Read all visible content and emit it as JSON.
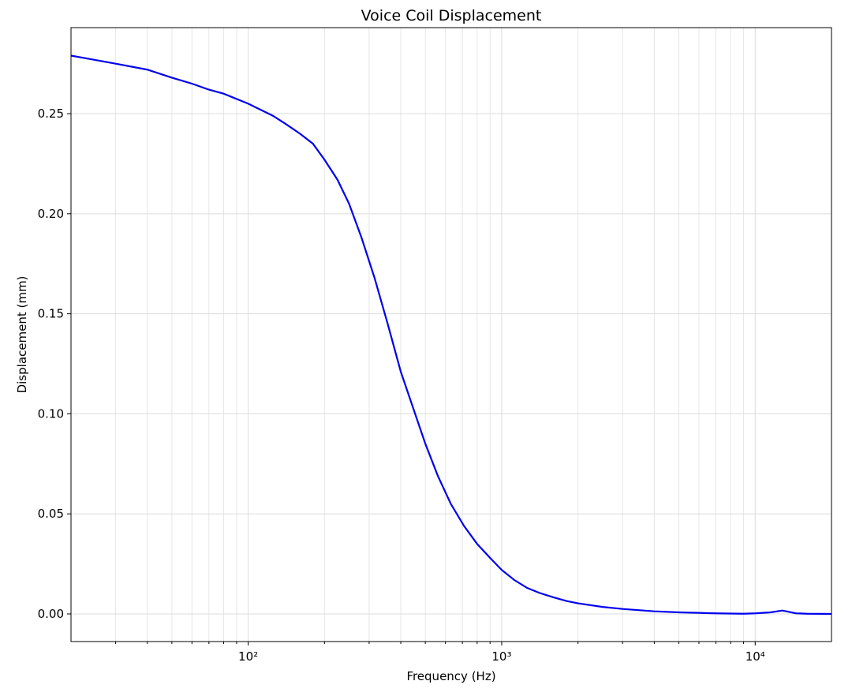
{
  "chart_data": {
    "type": "line",
    "title": "Voice Coil Displacement",
    "xlabel": "Frequency (Hz)",
    "ylabel": "Displacement (mm)",
    "xscale": "log",
    "grid": true,
    "xlim": [
      20,
      20000
    ],
    "ylim": [
      -0.0138,
      0.293
    ],
    "xticks": [
      {
        "value": 100,
        "label": "10²"
      },
      {
        "value": 1000,
        "label": "10³"
      },
      {
        "value": 10000,
        "label": "10⁴"
      }
    ],
    "xminorticks": [
      30,
      40,
      50,
      60,
      70,
      80,
      90,
      200,
      300,
      400,
      500,
      600,
      700,
      800,
      900,
      2000,
      3000,
      4000,
      5000,
      6000,
      7000,
      8000,
      9000
    ],
    "yticks": [
      {
        "value": 0,
        "label": "0.00"
      },
      {
        "value": 0.05,
        "label": "0.05"
      },
      {
        "value": 0.1,
        "label": "0.10"
      },
      {
        "value": 0.15,
        "label": "0.15"
      },
      {
        "value": 0.2,
        "label": "0.20"
      },
      {
        "value": 0.25,
        "label": "0.25"
      }
    ],
    "x": [
      20,
      30,
      40,
      50,
      60,
      70,
      80,
      100,
      125,
      140,
      160,
      180,
      200,
      225,
      250,
      280,
      315,
      355,
      400,
      450,
      500,
      560,
      630,
      710,
      800,
      900,
      1000,
      1120,
      1260,
      1410,
      1600,
      1800,
      2000,
      2500,
      3000,
      4000,
      5000,
      7000,
      9000,
      10000,
      11500,
      12800,
      14500,
      16000,
      20000
    ],
    "series": [
      {
        "color": "#0000ee",
        "values": [
          0.279,
          0.275,
          0.272,
          0.268,
          0.265,
          0.262,
          0.26,
          0.255,
          0.249,
          0.245,
          0.24,
          0.235,
          0.227,
          0.217,
          0.205,
          0.188,
          0.168,
          0.145,
          0.121,
          0.102,
          0.085,
          0.069,
          0.055,
          0.044,
          0.035,
          0.028,
          0.022,
          0.017,
          0.013,
          0.0105,
          0.0083,
          0.0065,
          0.0053,
          0.0035,
          0.0025,
          0.0013,
          0.0008,
          0.0003,
          0.0001,
          0.0003,
          0.0008,
          0.0017,
          0.0003,
          0.0001,
          0
        ]
      }
    ]
  }
}
